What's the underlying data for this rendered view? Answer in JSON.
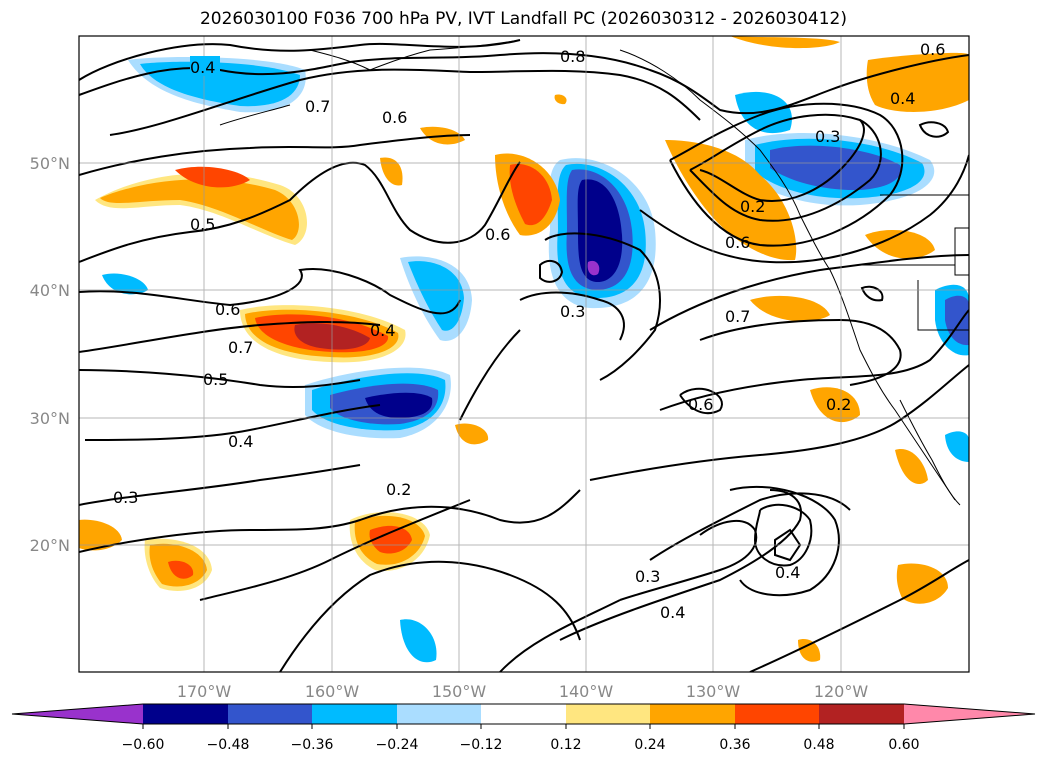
{
  "title": "2026030100 F036 700 hPa PV, IVT Landfall PC (2026030312 - 2026030412)",
  "colors": {
    "purple": "#9932cc",
    "navy": "#00008b",
    "royal": "#3355cc",
    "sky": "#00bbff",
    "pale_blue": "#aaddff",
    "white": "#ffffff",
    "pale_yellow": "#ffe680",
    "orange": "#ffa500",
    "orange_red": "#ff4500",
    "dark_red": "#b22222",
    "pink": "#ff88aa"
  },
  "map": {
    "lon_labels": [
      "170°W",
      "160°W",
      "150°W",
      "140°W",
      "130°W",
      "120°W"
    ],
    "lat_labels": [
      "50°N",
      "40°N",
      "30°N",
      "20°N"
    ],
    "contour_labels": [
      "0.4",
      "0.7",
      "0.8",
      "0.6",
      "0.6",
      "0.3",
      "0.2",
      "0.6",
      "0.4",
      "0.5",
      "0.6",
      "0.6",
      "0.4",
      "0.3",
      "0.7",
      "0.7",
      "0.5",
      "0.6",
      "0.4",
      "0.2",
      "0.3",
      "0.2",
      "0.3",
      "0.4",
      "0.4"
    ]
  },
  "colorbar": {
    "ticks": [
      "−0.60",
      "−0.48",
      "−0.36",
      "−0.24",
      "−0.12",
      "0.12",
      "0.24",
      "0.36",
      "0.48",
      "0.60"
    ]
  }
}
